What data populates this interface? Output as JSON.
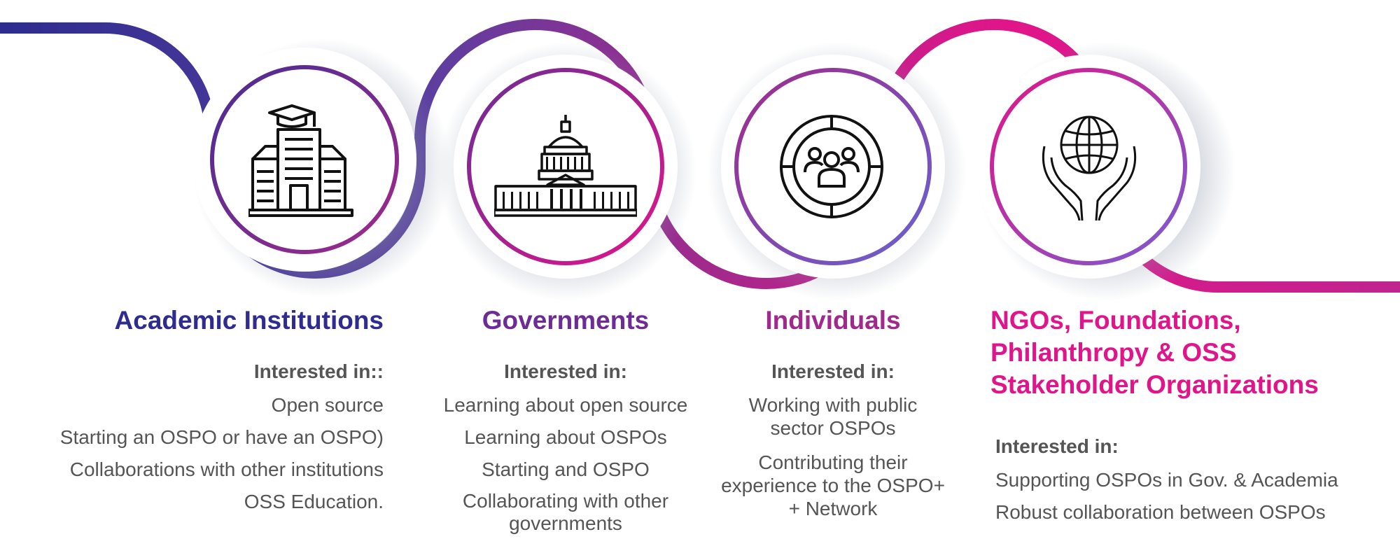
{
  "colors": {
    "navy": "#2e2c8f",
    "violet": "#6d2c95",
    "purple": "#a02a8c",
    "magenta": "#e1158a",
    "text_gray": "#555555"
  },
  "sections": [
    {
      "title": "Academic Institutions",
      "icon": "university-icon",
      "interested_label": "Interested in::",
      "items": [
        "Open source",
        "Starting an OSPO or have an OSPO)",
        "Collaborations with other institutions",
        "OSS Education."
      ]
    },
    {
      "title": "Governments",
      "icon": "capitol-building-icon",
      "interested_label": "Interested in:",
      "items": [
        "Learning about open source",
        "Learning about OSPOs",
        "Starting and OSPO",
        "Collaborating with other governments"
      ]
    },
    {
      "title": "Individuals",
      "icon": "people-target-icon",
      "interested_label": "Interested in:",
      "items": [
        "Working with public sector OSPOs",
        "Contributing their experience to the OSPO+ + Network"
      ]
    },
    {
      "title_lines": [
        "NGOs, Foundations,",
        "Philanthropy & OSS",
        "Stakeholder Organizations"
      ],
      "icon": "hands-globe-icon",
      "interested_label": "Interested in:",
      "items": [
        "Supporting OSPOs in Gov. & Academia",
        "Robust collaboration between OSPOs"
      ]
    }
  ]
}
